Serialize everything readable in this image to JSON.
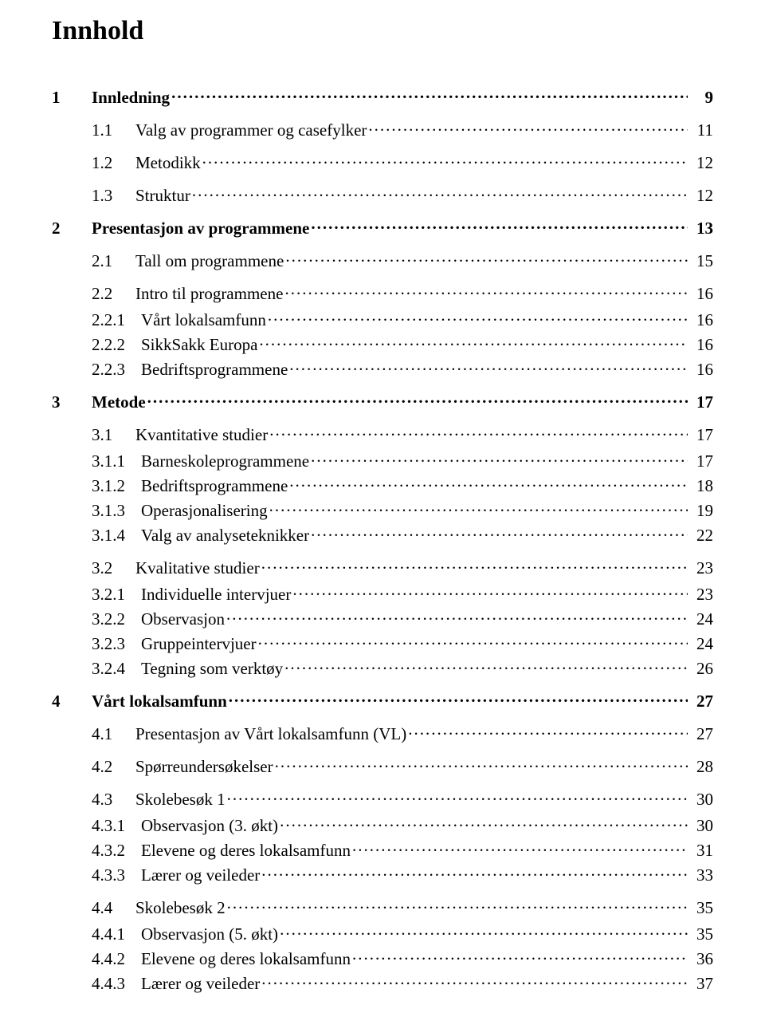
{
  "title": "Innhold",
  "font_family": "Times New Roman",
  "background_color": "#ffffff",
  "text_color": "#000000",
  "title_fontsize": 34,
  "body_fontsize": 21,
  "toc": [
    {
      "level": 1,
      "number": "1",
      "title": "Innledning",
      "page": "9"
    },
    {
      "level": 2,
      "number": "1.1",
      "title": "Valg av programmer og casefylker",
      "page": "11"
    },
    {
      "level": 2,
      "number": "1.2",
      "title": "Metodikk",
      "page": "12"
    },
    {
      "level": 2,
      "number": "1.3",
      "title": "Struktur",
      "page": "12"
    },
    {
      "level": 1,
      "number": "2",
      "title": "Presentasjon av programmene",
      "page": "13"
    },
    {
      "level": 2,
      "number": "2.1",
      "title": "Tall om programmene",
      "page": "15"
    },
    {
      "level": 2,
      "number": "2.2",
      "title": "Intro til programmene",
      "page": "16"
    },
    {
      "level": 3,
      "number": "2.2.1",
      "title": "Vårt lokalsamfunn",
      "page": "16"
    },
    {
      "level": 3,
      "number": "2.2.2",
      "title": "SikkSakk Europa",
      "page": "16"
    },
    {
      "level": 3,
      "number": "2.2.3",
      "title": "Bedriftsprogrammene",
      "page": "16"
    },
    {
      "level": 1,
      "number": "3",
      "title": "Metode",
      "page": "17"
    },
    {
      "level": 2,
      "number": "3.1",
      "title": "Kvantitative studier",
      "page": "17"
    },
    {
      "level": 3,
      "number": "3.1.1",
      "title": "Barneskoleprogrammene",
      "page": "17"
    },
    {
      "level": 3,
      "number": "3.1.2",
      "title": "Bedriftsprogrammene",
      "page": "18"
    },
    {
      "level": 3,
      "number": "3.1.3",
      "title": "Operasjonalisering",
      "page": "19"
    },
    {
      "level": 3,
      "number": "3.1.4",
      "title": "Valg av analyseteknikker",
      "page": "22"
    },
    {
      "level": 2,
      "number": "3.2",
      "title": "Kvalitative studier",
      "page": "23"
    },
    {
      "level": 3,
      "number": "3.2.1",
      "title": "Individuelle intervjuer",
      "page": "23"
    },
    {
      "level": 3,
      "number": "3.2.2",
      "title": "Observasjon",
      "page": "24"
    },
    {
      "level": 3,
      "number": "3.2.3",
      "title": "Gruppeintervjuer",
      "page": "24"
    },
    {
      "level": 3,
      "number": "3.2.4",
      "title": "Tegning som verktøy",
      "page": "26"
    },
    {
      "level": 1,
      "number": "4",
      "title": "Vårt lokalsamfunn",
      "page": "27"
    },
    {
      "level": 2,
      "number": "4.1",
      "title": "Presentasjon av Vårt lokalsamfunn (VL)",
      "page": "27"
    },
    {
      "level": 2,
      "number": "4.2",
      "title": "Spørreundersøkelser",
      "page": "28"
    },
    {
      "level": 2,
      "number": "4.3",
      "title": "Skolebesøk 1",
      "page": "30"
    },
    {
      "level": 3,
      "number": "4.3.1",
      "title": "Observasjon (3. økt)",
      "page": "30"
    },
    {
      "level": 3,
      "number": "4.3.2",
      "title": "Elevene og deres lokalsamfunn",
      "page": "31"
    },
    {
      "level": 3,
      "number": "4.3.3",
      "title": "Lærer og veileder",
      "page": "33"
    },
    {
      "level": 2,
      "number": "4.4",
      "title": "Skolebesøk 2",
      "page": "35"
    },
    {
      "level": 3,
      "number": "4.4.1",
      "title": "Observasjon (5. økt)",
      "page": "35"
    },
    {
      "level": 3,
      "number": "4.4.2",
      "title": "Elevene og deres lokalsamfunn",
      "page": "36"
    },
    {
      "level": 3,
      "number": "4.4.3",
      "title": "Lærer og veileder",
      "page": "37"
    }
  ]
}
